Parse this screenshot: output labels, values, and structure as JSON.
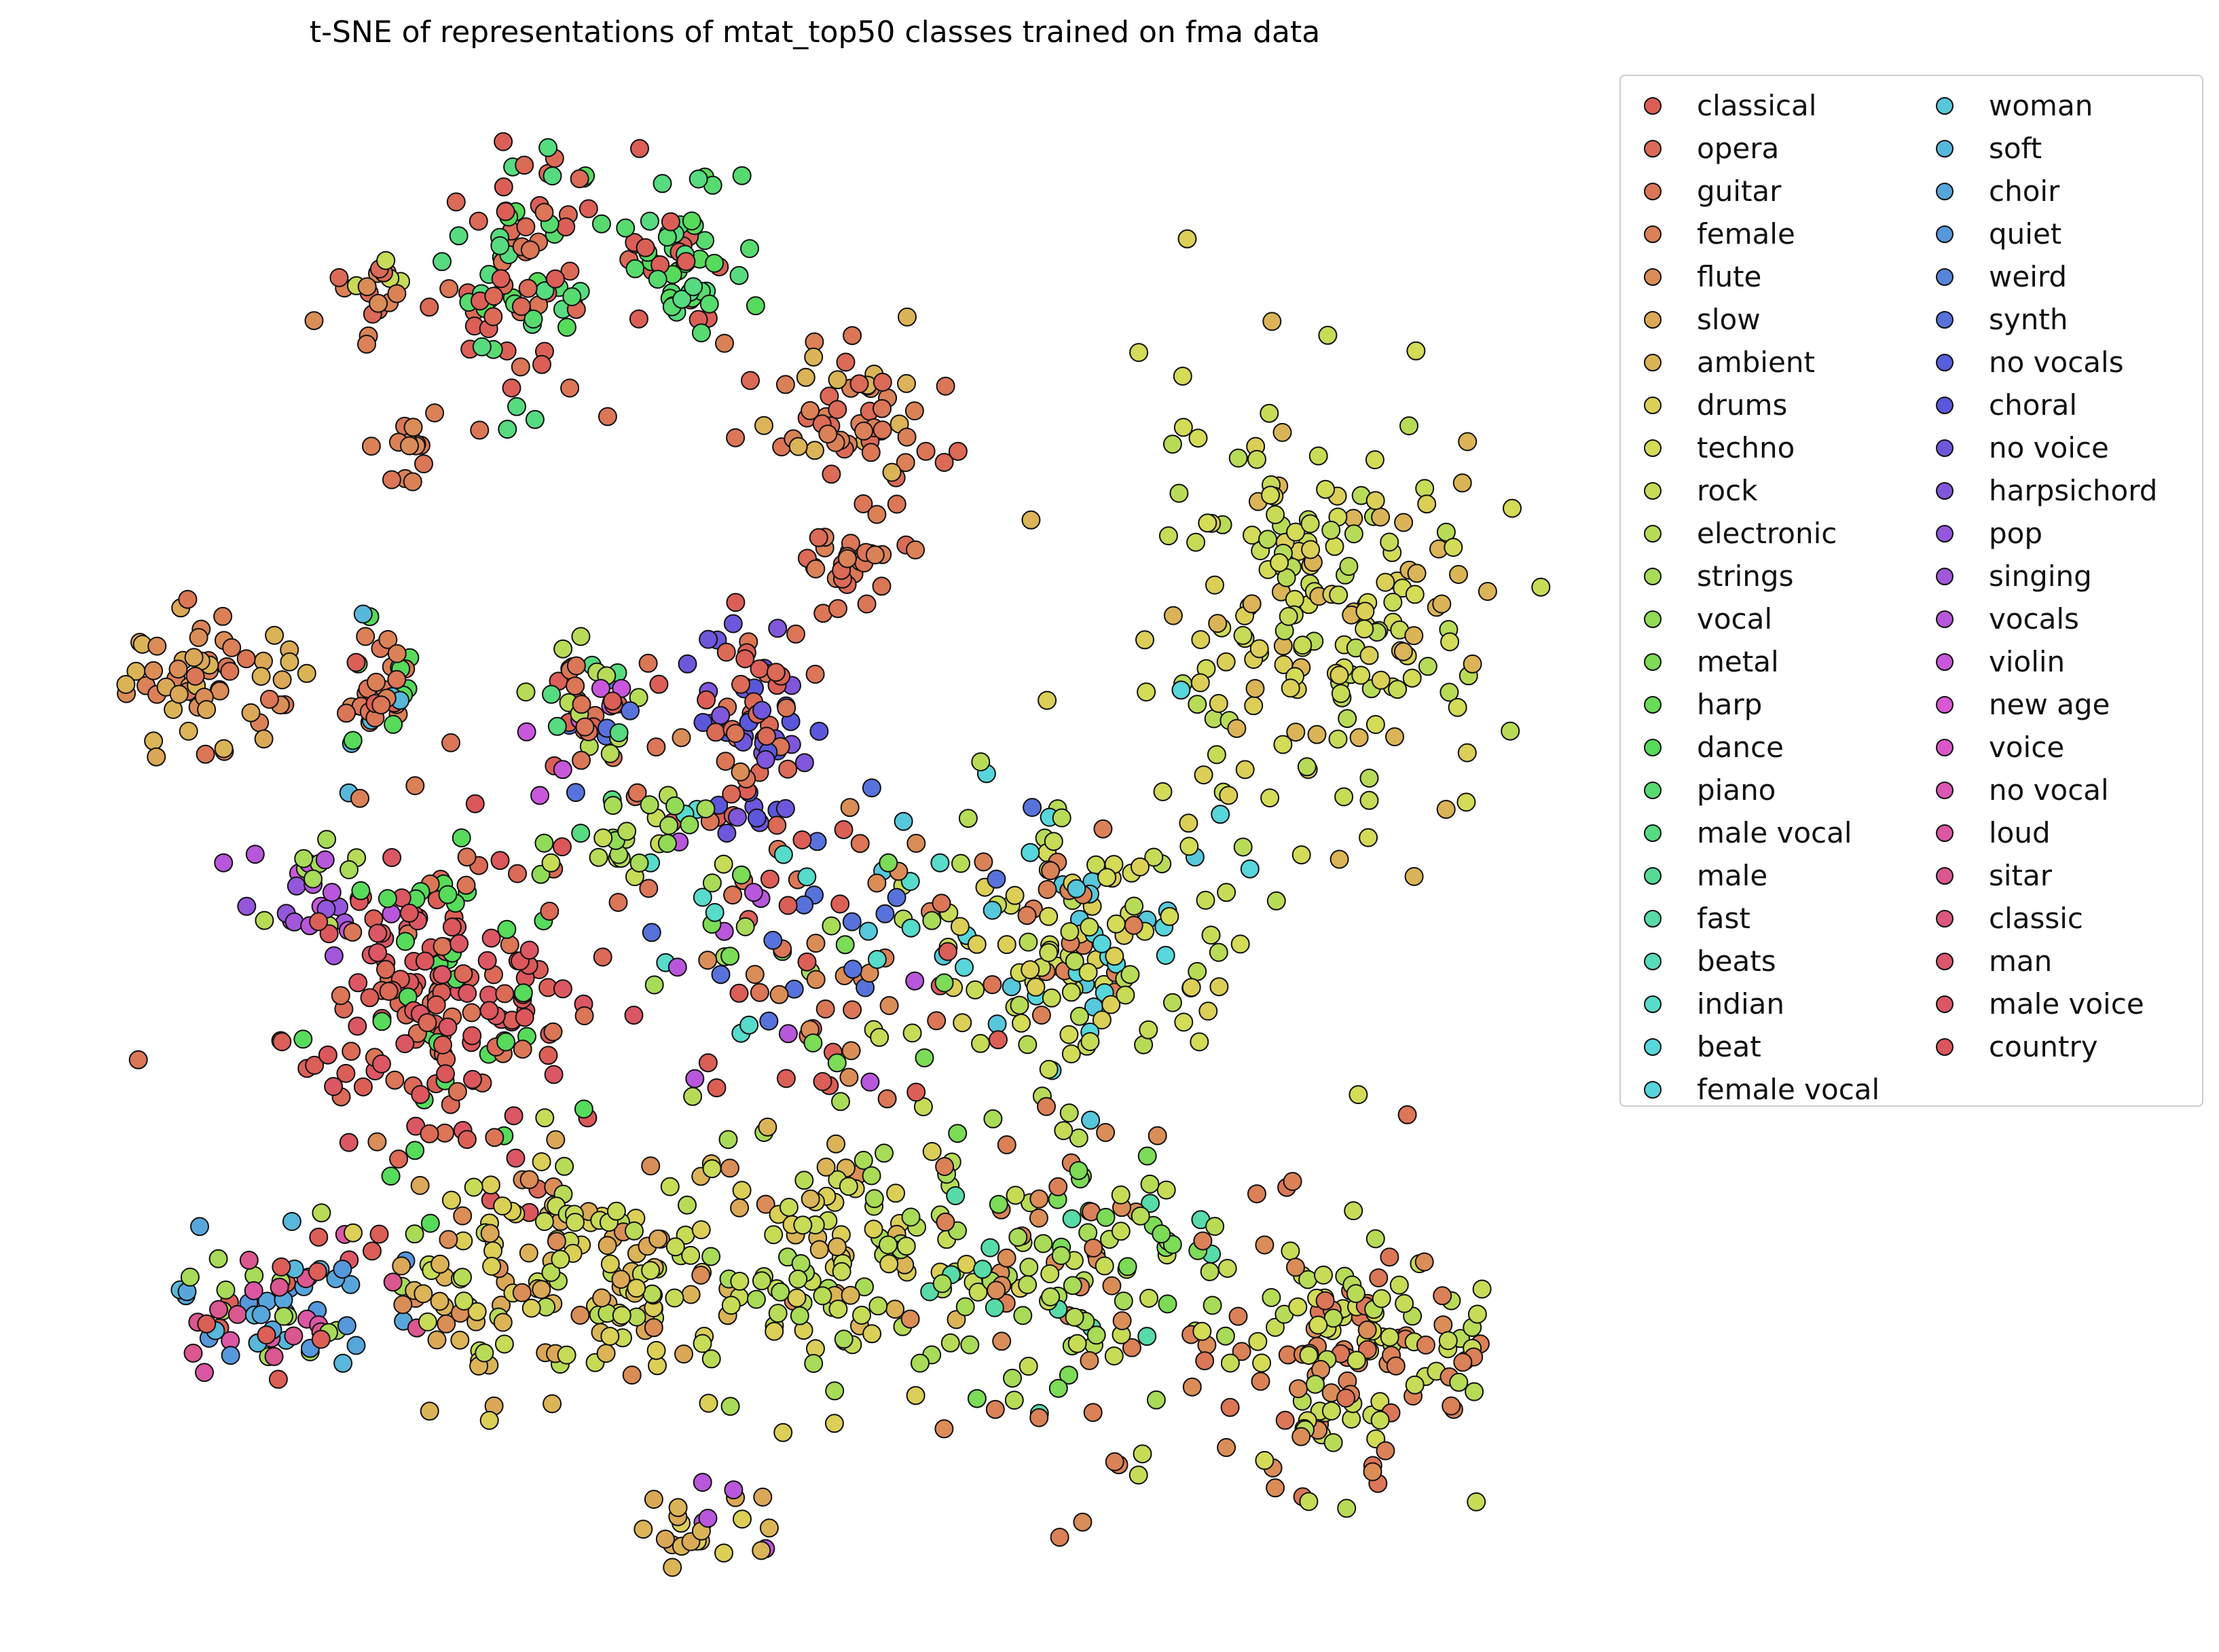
{
  "chart_data": {
    "type": "scatter",
    "title": "t-SNE of representations of mtat_top50 classes trained on fma data",
    "xlabel": "",
    "ylabel": "",
    "axes_visible": false,
    "legend_position": "upper right, outside plot",
    "legend_columns": 2,
    "marker": "circle, black edge",
    "classes": [
      {
        "name": "classical",
        "color": "#db5f57"
      },
      {
        "name": "opera",
        "color": "#db6a57"
      },
      {
        "name": "guitar",
        "color": "#db7657"
      },
      {
        "name": "female",
        "color": "#db8157"
      },
      {
        "name": "flute",
        "color": "#db8d57"
      },
      {
        "name": "slow",
        "color": "#dba857"
      },
      {
        "name": "ambient",
        "color": "#dbb457"
      },
      {
        "name": "drums",
        "color": "#dbcf57"
      },
      {
        "name": "techno",
        "color": "#d3db57"
      },
      {
        "name": "rock",
        "color": "#c8db57"
      },
      {
        "name": "electronic",
        "color": "#b8db57"
      },
      {
        "name": "strings",
        "color": "#a8db57"
      },
      {
        "name": "vocal",
        "color": "#91db57"
      },
      {
        "name": "metal",
        "color": "#7cdb57"
      },
      {
        "name": "harp",
        "color": "#68db57"
      },
      {
        "name": "dance",
        "color": "#57db5b"
      },
      {
        "name": "piano",
        "color": "#57db6f"
      },
      {
        "name": "male vocal",
        "color": "#57db80"
      },
      {
        "name": "male",
        "color": "#57db94"
      },
      {
        "name": "fast",
        "color": "#57dba8"
      },
      {
        "name": "beats",
        "color": "#57dbb8"
      },
      {
        "name": "indian",
        "color": "#57dbcb"
      },
      {
        "name": "beat",
        "color": "#57d6db"
      },
      {
        "name": "female vocal",
        "color": "#57d3db"
      },
      {
        "name": "woman",
        "color": "#57c8db"
      },
      {
        "name": "soft",
        "color": "#57b8db"
      },
      {
        "name": "choir",
        "color": "#57a6db"
      },
      {
        "name": "quiet",
        "color": "#5797db"
      },
      {
        "name": "weird",
        "color": "#5784db"
      },
      {
        "name": "synth",
        "color": "#5773db"
      },
      {
        "name": "no vocals",
        "color": "#575fdb"
      },
      {
        "name": "choral",
        "color": "#5b57db"
      },
      {
        "name": "no voice",
        "color": "#6f57db"
      },
      {
        "name": "harpsichord",
        "color": "#8057db"
      },
      {
        "name": "pop",
        "color": "#9457db"
      },
      {
        "name": "singing",
        "color": "#a357db"
      },
      {
        "name": "vocals",
        "color": "#b857db"
      },
      {
        "name": "violin",
        "color": "#c957db"
      },
      {
        "name": "new age",
        "color": "#db57d6"
      },
      {
        "name": "voice",
        "color": "#db57c8"
      },
      {
        "name": "no vocal",
        "color": "#db57b4"
      },
      {
        "name": "loud",
        "color": "#db57a3"
      },
      {
        "name": "sitar",
        "color": "#db578f"
      },
      {
        "name": "classic",
        "color": "#db577e"
      },
      {
        "name": "man",
        "color": "#db576c"
      },
      {
        "name": "male voice",
        "color": "#db5763"
      },
      {
        "name": "country",
        "color": "#db575b"
      }
    ],
    "cluster_seeds": {
      "note": "approximate t-SNE point clusters read from the image; coordinates in embedding units (x to the right, y upward)",
      "xlim": [
        0,
        100
      ],
      "ylim": [
        0,
        100
      ],
      "clusters": [
        {
          "cx": 30,
          "cy": 90,
          "sx": 3.0,
          "sy": 4.5,
          "n": 90,
          "classes": [
            "classical",
            "opera",
            "male vocal",
            "piano",
            "dance",
            "guitar"
          ]
        },
        {
          "cx": 41,
          "cy": 91,
          "sx": 1.8,
          "sy": 3.0,
          "n": 60,
          "classes": [
            "male vocal",
            "piano",
            "classical",
            "dance"
          ]
        },
        {
          "cx": 53,
          "cy": 80,
          "sx": 3.5,
          "sy": 2.5,
          "n": 60,
          "classes": [
            "female",
            "guitar",
            "opera",
            "ambient"
          ]
        },
        {
          "cx": 20,
          "cy": 89,
          "sx": 1.2,
          "sy": 1.5,
          "n": 20,
          "classes": [
            "flute",
            "female",
            "rock",
            "strings",
            "opera"
          ]
        },
        {
          "cx": 22,
          "cy": 78,
          "sx": 1.0,
          "sy": 1.4,
          "n": 16,
          "classes": [
            "guitar",
            "female",
            "flute"
          ]
        },
        {
          "cx": 8,
          "cy": 61,
          "sx": 3.2,
          "sy": 3.0,
          "n": 60,
          "classes": [
            "female",
            "flute",
            "ambient",
            "slow",
            "guitar"
          ]
        },
        {
          "cx": 20,
          "cy": 61,
          "sx": 1.6,
          "sy": 2.5,
          "n": 40,
          "classes": [
            "guitar",
            "female",
            "classical",
            "dance",
            "soft"
          ]
        },
        {
          "cx": 16,
          "cy": 47,
          "sx": 2.2,
          "sy": 2.0,
          "n": 30,
          "classes": [
            "vocals",
            "singing",
            "pop",
            "electronic",
            "strings",
            "violin"
          ]
        },
        {
          "cx": 24,
          "cy": 40,
          "sx": 5.0,
          "sy": 5.5,
          "n": 200,
          "classes": [
            "classical",
            "opera",
            "country",
            "male voice",
            "guitar",
            "dance"
          ]
        },
        {
          "cx": 35,
          "cy": 59,
          "sx": 2.5,
          "sy": 2.8,
          "n": 60,
          "classes": [
            "guitar",
            "classical",
            "male vocal",
            "synth",
            "violin",
            "electronic"
          ]
        },
        {
          "cx": 46,
          "cy": 58,
          "sx": 2.0,
          "sy": 4.0,
          "n": 80,
          "classes": [
            "classical",
            "opera",
            "harpsichord",
            "no voice",
            "choral",
            "guitar"
          ]
        },
        {
          "cx": 53,
          "cy": 70,
          "sx": 2.0,
          "sy": 1.5,
          "n": 30,
          "classes": [
            "female",
            "guitar",
            "opera"
          ]
        },
        {
          "cx": 85,
          "cy": 66,
          "sx": 6.0,
          "sy": 7.5,
          "n": 200,
          "classes": [
            "techno",
            "drums",
            "rock",
            "electronic",
            "ambient"
          ]
        },
        {
          "cx": 68,
          "cy": 44,
          "sx": 5.5,
          "sy": 5.0,
          "n": 160,
          "classes": [
            "techno",
            "rock",
            "drums",
            "woman",
            "beat",
            "female",
            "electronic"
          ]
        },
        {
          "cx": 50,
          "cy": 42,
          "sx": 6.0,
          "sy": 5.5,
          "n": 110,
          "classes": [
            "guitar",
            "flute",
            "strings",
            "metal",
            "synth",
            "vocals",
            "classical",
            "indian"
          ]
        },
        {
          "cx": 37,
          "cy": 51,
          "sx": 2.5,
          "sy": 2.0,
          "n": 25,
          "classes": [
            "rock",
            "electronic",
            "strings",
            "vocal"
          ]
        },
        {
          "cx": 14,
          "cy": 18,
          "sx": 4.0,
          "sy": 3.0,
          "n": 80,
          "classes": [
            "classical",
            "choir",
            "quiet",
            "soft",
            "loud",
            "sitar",
            "strings"
          ]
        },
        {
          "cx": 35,
          "cy": 20,
          "sx": 7.0,
          "sy": 4.5,
          "n": 180,
          "classes": [
            "ambient",
            "slow",
            "drums",
            "rock",
            "electronic",
            "flute"
          ]
        },
        {
          "cx": 52,
          "cy": 22,
          "sx": 5.0,
          "sy": 4.5,
          "n": 110,
          "classes": [
            "electronic",
            "rock",
            "drums",
            "ambient",
            "strings"
          ]
        },
        {
          "cx": 68,
          "cy": 20,
          "sx": 5.0,
          "sy": 6.0,
          "n": 140,
          "classes": [
            "female",
            "rock",
            "strings",
            "metal",
            "fast",
            "electronic",
            "flute"
          ]
        },
        {
          "cx": 86,
          "cy": 15,
          "sx": 4.0,
          "sy": 5.0,
          "n": 120,
          "classes": [
            "rock",
            "electronic",
            "female",
            "guitar",
            "techno",
            "flute"
          ]
        },
        {
          "cx": 93,
          "cy": 15,
          "sx": 2.0,
          "sy": 2.0,
          "n": 30,
          "classes": [
            "female",
            "rock",
            "electronic"
          ]
        },
        {
          "cx": 43,
          "cy": 2.5,
          "sx": 2.5,
          "sy": 1.6,
          "n": 26,
          "classes": [
            "ambient",
            "slow",
            "drums",
            "vocals"
          ]
        }
      ]
    }
  }
}
